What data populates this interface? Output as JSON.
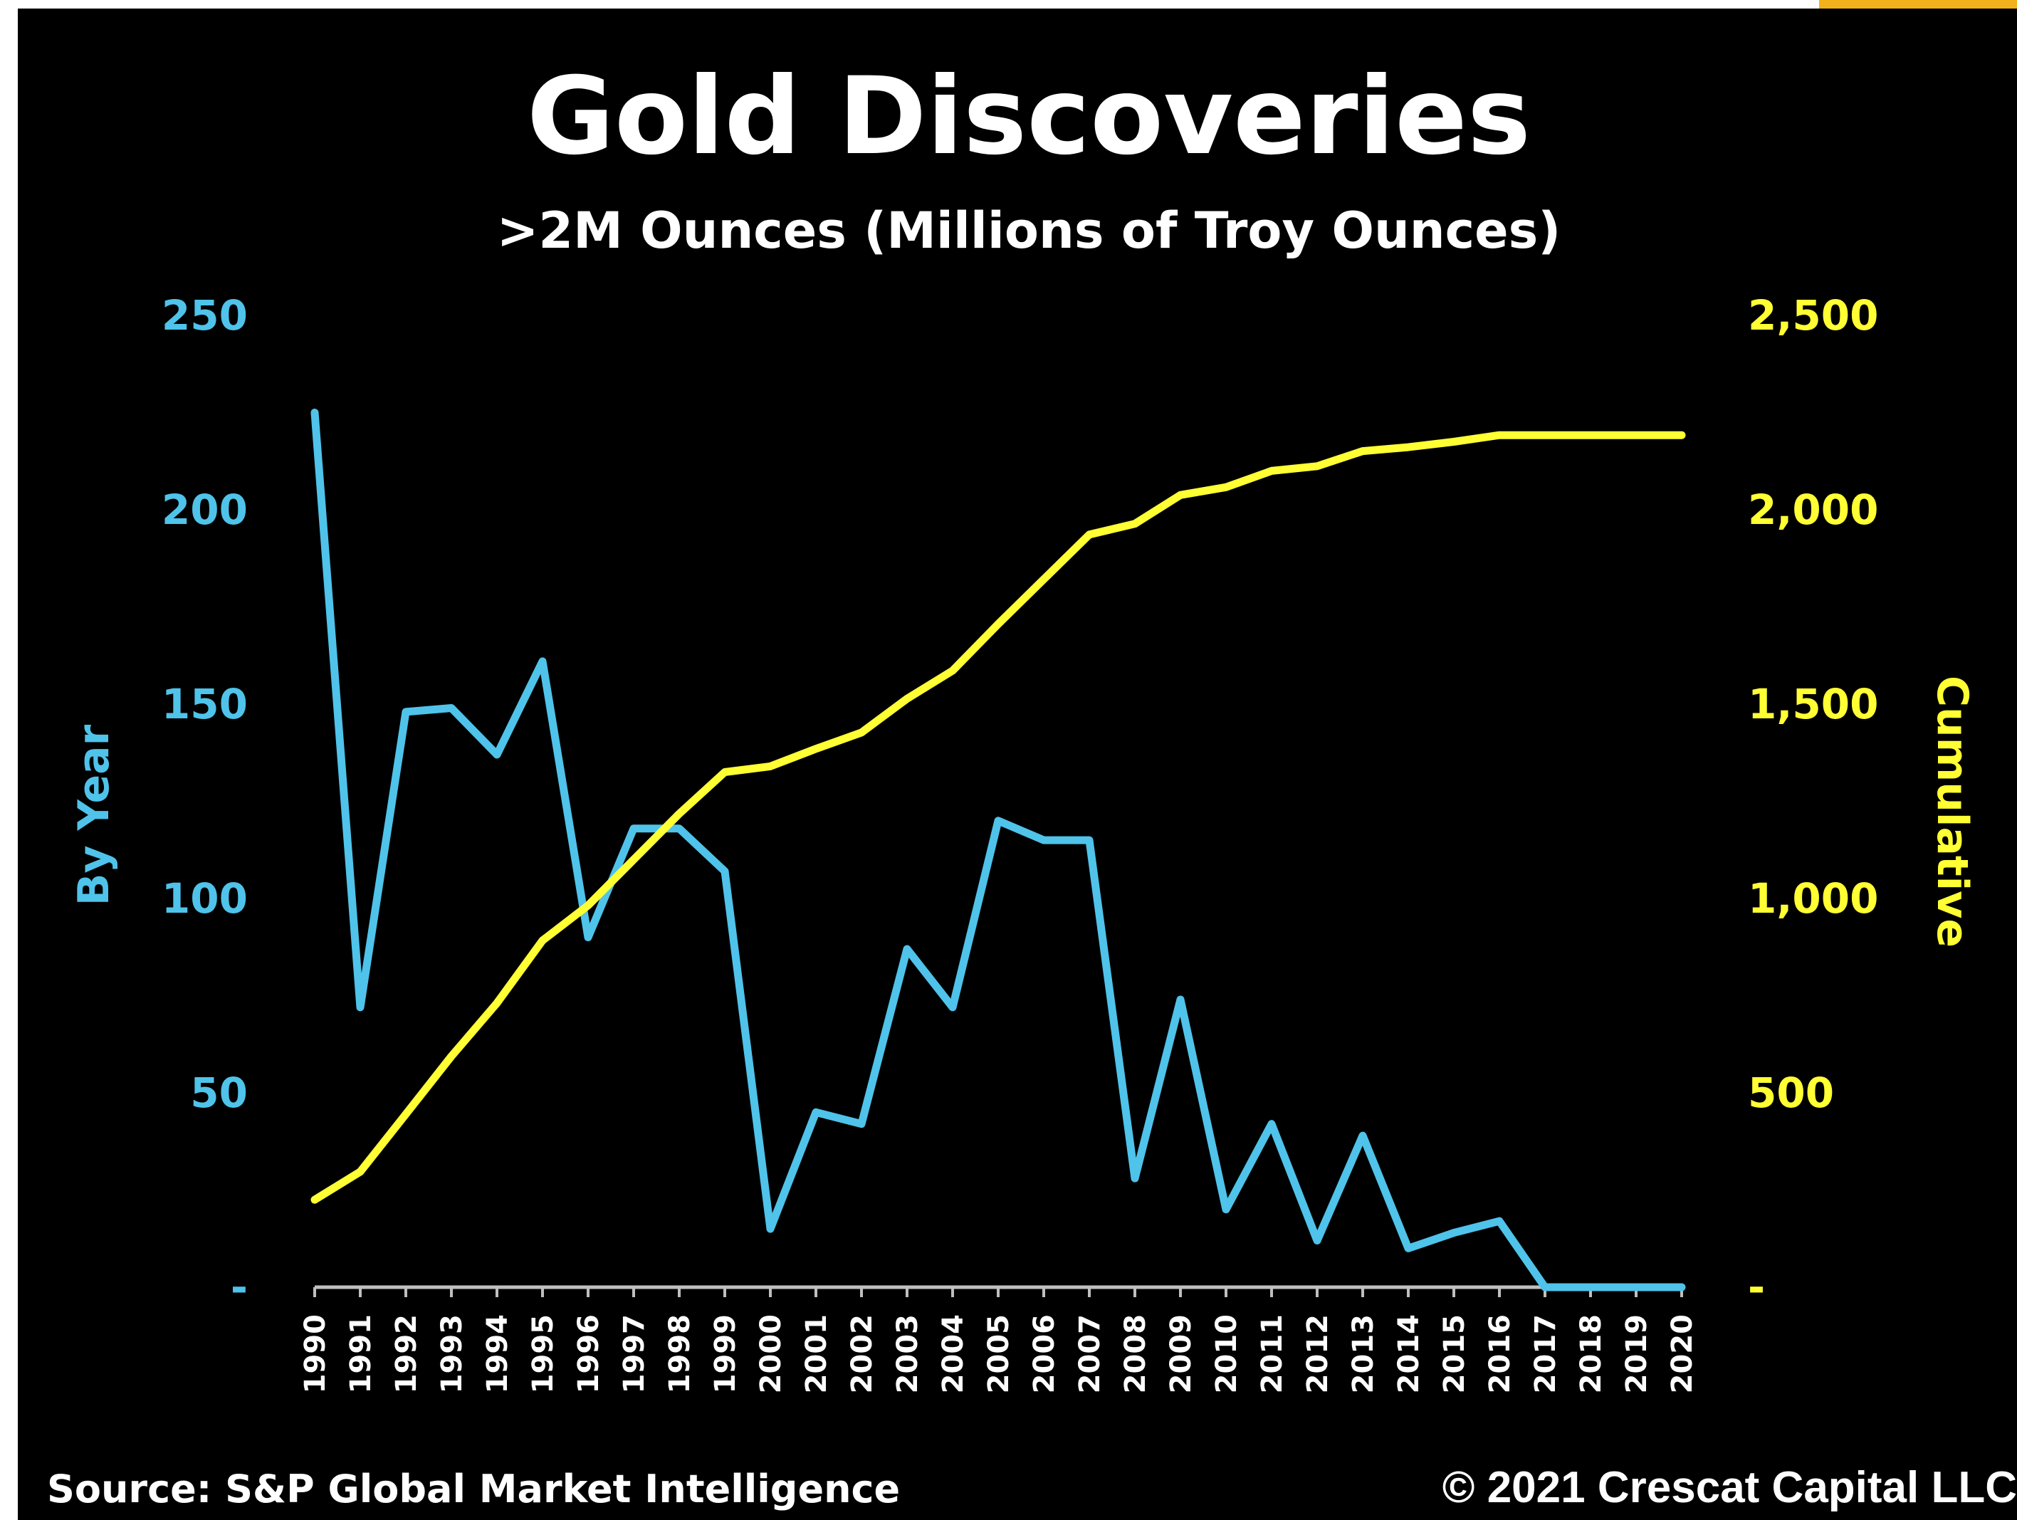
{
  "colors": {
    "background": "#000000",
    "by_year": "#4fc3ea",
    "cumulative": "#ffff33",
    "text": "#ffffff",
    "axis": "#bfbfbf",
    "accent": "#f2b21b"
  },
  "footer": {
    "source": "Source: S&P Global Market Intelligence",
    "copyright": "© 2021 Crescat Capital LLC"
  },
  "chart_data": {
    "type": "line",
    "title": "Gold Discoveries",
    "subtitle": ">2M Ounces (Millions of Troy Ounces)",
    "ylabel": "By Year",
    "y2label": "Cumulative",
    "ylim": [
      0,
      250
    ],
    "y2lim": [
      0,
      2500
    ],
    "yticks": [
      "-",
      "50",
      "100",
      "150",
      "200",
      "250"
    ],
    "y2ticks": [
      "-",
      "500",
      "1,000",
      "1,500",
      "2,000",
      "2,500"
    ],
    "grid": false,
    "x": [
      "1990",
      "1991",
      "1992",
      "1993",
      "1994",
      "1995",
      "1996",
      "1997",
      "1998",
      "1999",
      "2000",
      "2001",
      "2002",
      "2003",
      "2004",
      "2005",
      "2006",
      "2007",
      "2008",
      "2009",
      "2010",
      "2011",
      "2012",
      "2013",
      "2014",
      "2015",
      "2016",
      "2017",
      "2018",
      "2019",
      "2020"
    ],
    "series": [
      {
        "name": "By Year",
        "axis": "left",
        "values": [
          225,
          72,
          148,
          149,
          137,
          161,
          90,
          118,
          118,
          107,
          15,
          45,
          42,
          87,
          72,
          120,
          115,
          115,
          28,
          74,
          20,
          42,
          12,
          39,
          10,
          14,
          17,
          0,
          0,
          0,
          0
        ]
      },
      {
        "name": "Cumulative",
        "axis": "right",
        "values": [
          225,
          297,
          445,
          594,
          731,
          892,
          982,
          1100,
          1218,
          1325,
          1340,
          1385,
          1427,
          1514,
          1586,
          1706,
          1821,
          1936,
          1964,
          2038,
          2058,
          2100,
          2112,
          2151,
          2161,
          2175,
          2192,
          2192,
          2192,
          2192,
          2192
        ]
      }
    ]
  }
}
